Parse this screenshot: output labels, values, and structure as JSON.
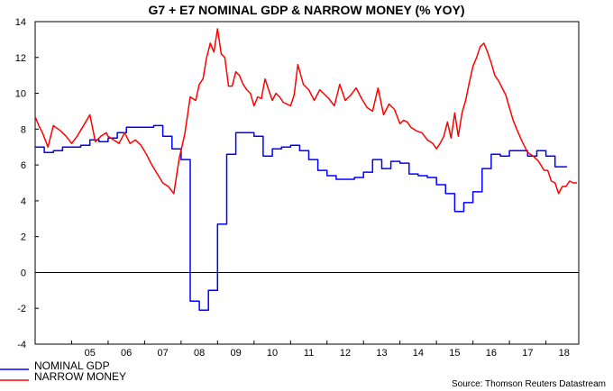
{
  "chart_data": {
    "type": "line",
    "title": "G7 + E7 NOMINAL GDP & NARROW MONEY (% YOY)",
    "source": "Source: Thomson Reuters Datastream",
    "ylim": [
      -4,
      14
    ],
    "yticks": [
      14,
      12,
      10,
      8,
      6,
      4,
      2,
      0,
      -2,
      -4
    ],
    "xlim": [
      2004.0,
      2018.9
    ],
    "xticks": [
      {
        "label": "05",
        "x": 2005.0
      },
      {
        "label": "06",
        "x": 2006.0
      },
      {
        "label": "07",
        "x": 2007.0
      },
      {
        "label": "08",
        "x": 2008.0
      },
      {
        "label": "09",
        "x": 2009.0
      },
      {
        "label": "10",
        "x": 2010.0
      },
      {
        "label": "11",
        "x": 2011.0
      },
      {
        "label": "12",
        "x": 2012.0
      },
      {
        "label": "13",
        "x": 2013.0
      },
      {
        "label": "14",
        "x": 2014.0
      },
      {
        "label": "15",
        "x": 2015.0
      },
      {
        "label": "16",
        "x": 2016.0
      },
      {
        "label": "17",
        "x": 2017.0
      },
      {
        "label": "18",
        "x": 2018.0
      }
    ],
    "zero_line": true,
    "grid": false,
    "legend_position": "bottom-left",
    "series": [
      {
        "name": "NOMINAL GDP",
        "color": "#0000ff",
        "step": true,
        "x": [
          2004.0,
          2004.25,
          2004.5,
          2004.75,
          2005.0,
          2005.25,
          2005.5,
          2005.75,
          2006.0,
          2006.25,
          2006.5,
          2006.75,
          2007.0,
          2007.25,
          2007.5,
          2007.75,
          2008.0,
          2008.25,
          2008.5,
          2008.75,
          2009.0,
          2009.25,
          2009.5,
          2009.75,
          2010.0,
          2010.25,
          2010.5,
          2010.75,
          2011.0,
          2011.25,
          2011.5,
          2011.75,
          2012.0,
          2012.25,
          2012.5,
          2012.75,
          2013.0,
          2013.25,
          2013.5,
          2013.75,
          2014.0,
          2014.25,
          2014.5,
          2014.75,
          2015.0,
          2015.25,
          2015.5,
          2015.75,
          2016.0,
          2016.25,
          2016.5,
          2016.75,
          2017.0,
          2017.25,
          2017.5,
          2017.75,
          2018.0,
          2018.25,
          2018.5
        ],
        "values": [
          7.0,
          6.7,
          6.8,
          7.0,
          7.0,
          7.1,
          7.4,
          7.3,
          7.5,
          7.8,
          8.1,
          8.1,
          8.1,
          8.2,
          7.6,
          6.9,
          6.3,
          -1.6,
          -2.1,
          -1.0,
          2.7,
          6.6,
          7.8,
          7.8,
          7.6,
          6.5,
          6.9,
          7.0,
          7.1,
          6.8,
          6.3,
          5.7,
          5.4,
          5.2,
          5.2,
          5.3,
          5.6,
          6.3,
          5.8,
          6.2,
          6.1,
          5.5,
          5.4,
          5.3,
          4.9,
          4.4,
          3.4,
          3.9,
          4.5,
          5.8,
          6.6,
          6.5,
          6.8,
          6.8,
          6.5,
          6.8,
          6.5,
          5.9,
          5.9
        ]
      },
      {
        "name": "NARROW MONEY",
        "color": "#ff0000",
        "step": false,
        "x": [
          2004.0,
          2004.1,
          2004.2,
          2004.35,
          2004.5,
          2004.7,
          2004.85,
          2005.0,
          2005.15,
          2005.3,
          2005.5,
          2005.65,
          2005.8,
          2005.95,
          2006.0,
          2006.15,
          2006.3,
          2006.45,
          2006.6,
          2006.75,
          2006.9,
          2007.05,
          2007.2,
          2007.35,
          2007.5,
          2007.65,
          2007.8,
          2007.95,
          2008.1,
          2008.25,
          2008.4,
          2008.5,
          2008.6,
          2008.7,
          2008.8,
          2008.9,
          2009.0,
          2009.1,
          2009.2,
          2009.3,
          2009.4,
          2009.5,
          2009.6,
          2009.7,
          2009.8,
          2009.9,
          2010.0,
          2010.1,
          2010.2,
          2010.3,
          2010.4,
          2010.5,
          2010.6,
          2010.7,
          2010.8,
          2010.9,
          2011.0,
          2011.1,
          2011.2,
          2011.35,
          2011.5,
          2011.65,
          2011.8,
          2011.95,
          2012.05,
          2012.2,
          2012.35,
          2012.5,
          2012.65,
          2012.8,
          2012.95,
          2013.1,
          2013.25,
          2013.4,
          2013.55,
          2013.7,
          2013.85,
          2014.0,
          2014.1,
          2014.2,
          2014.3,
          2014.45,
          2014.6,
          2014.75,
          2014.9,
          2015.0,
          2015.1,
          2015.2,
          2015.3,
          2015.4,
          2015.5,
          2015.6,
          2015.7,
          2015.8,
          2015.9,
          2016.0,
          2016.1,
          2016.2,
          2016.3,
          2016.4,
          2016.5,
          2016.6,
          2016.7,
          2016.8,
          2016.9,
          2017.0,
          2017.1,
          2017.2,
          2017.35,
          2017.5,
          2017.65,
          2017.8,
          2017.95,
          2018.05,
          2018.15,
          2018.25,
          2018.35,
          2018.45,
          2018.55,
          2018.65,
          2018.75,
          2018.85
        ],
        "values": [
          8.7,
          8.2,
          7.8,
          7.0,
          8.2,
          7.9,
          7.6,
          7.2,
          7.6,
          8.1,
          8.8,
          7.3,
          7.6,
          7.8,
          7.6,
          7.4,
          7.2,
          7.8,
          7.2,
          7.4,
          7.1,
          6.6,
          6.0,
          5.5,
          5.0,
          4.8,
          4.4,
          6.4,
          7.7,
          9.8,
          9.6,
          10.5,
          10.8,
          12.0,
          12.8,
          12.3,
          13.6,
          12.2,
          12.0,
          10.4,
          10.4,
          11.2,
          11.0,
          10.5,
          10.2,
          10.0,
          9.3,
          9.8,
          9.7,
          10.8,
          10.2,
          9.6,
          10.0,
          9.8,
          9.5,
          9.4,
          9.3,
          9.9,
          11.6,
          10.5,
          10.2,
          9.6,
          10.2,
          9.9,
          9.7,
          9.3,
          10.5,
          9.6,
          9.9,
          10.3,
          9.7,
          9.2,
          9.0,
          10.3,
          8.8,
          9.4,
          9.1,
          8.3,
          8.5,
          8.4,
          8.1,
          7.9,
          7.8,
          7.4,
          7.2,
          6.9,
          7.2,
          7.6,
          8.4,
          7.5,
          8.9,
          7.6,
          8.9,
          9.6,
          10.6,
          11.5,
          12.0,
          12.6,
          12.8,
          12.3,
          11.7,
          11.0,
          10.7,
          10.3,
          9.9,
          9.2,
          8.5,
          8.0,
          7.3,
          6.7,
          6.5,
          6.2,
          5.7,
          5.7,
          5.1,
          5.0,
          4.4,
          4.8,
          4.8,
          5.1,
          5.0,
          5.0
        ]
      }
    ]
  }
}
